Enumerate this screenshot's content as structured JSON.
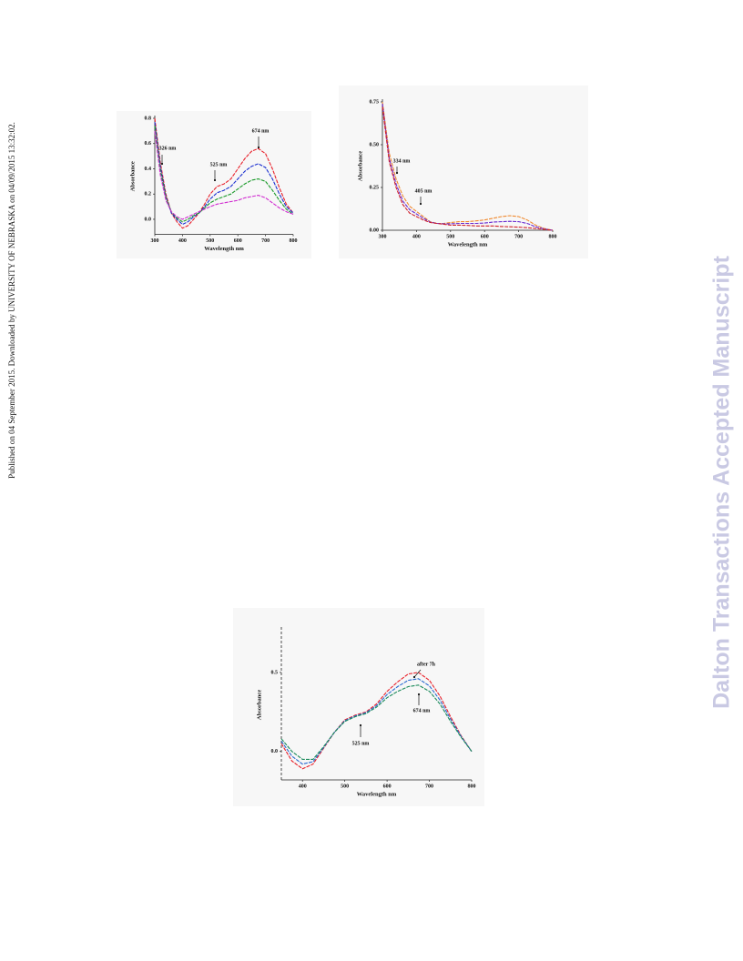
{
  "side_note": "Published on 04 September 2015. Downloaded by UNIVERSITY OF NEBRASKA on 04/09/2015 13:32:02.",
  "watermark": "Dalton Transactions Accepted Manuscript",
  "chart_data": [
    {
      "type": "line",
      "xlabel": "Wavelength nm",
      "ylabel": "Absorbance",
      "annotations": [
        "326 nm",
        "525 nm",
        "674 nm"
      ],
      "x": [
        300,
        320,
        340,
        360,
        380,
        400,
        420,
        440,
        460,
        480,
        500,
        525,
        550,
        575,
        600,
        625,
        650,
        674,
        700,
        725,
        750,
        775,
        800
      ],
      "xlim": [
        300,
        800
      ],
      "xticks": [
        300,
        400,
        500,
        600,
        700,
        800
      ],
      "ylim": [
        -0.12,
        0.8
      ],
      "yticks": [
        {
          "value": 0,
          "label": "0.0"
        },
        {
          "value": 0.2,
          "label": "0.2"
        },
        {
          "value": 0.4,
          "label": "0.4"
        },
        {
          "value": 0.6,
          "label": "0.6"
        },
        {
          "value": 0.8,
          "label": "0.8"
        }
      ],
      "series": [
        {
          "color": "#e8202a",
          "values": [
            0.8,
            0.45,
            0.2,
            0.05,
            -0.02,
            -0.07,
            -0.05,
            0.0,
            0.05,
            0.12,
            0.2,
            0.26,
            0.28,
            0.32,
            0.4,
            0.48,
            0.54,
            0.56,
            0.52,
            0.4,
            0.25,
            0.12,
            0.05
          ]
        },
        {
          "color": "#1a2fd0",
          "values": [
            0.77,
            0.42,
            0.18,
            0.05,
            0.0,
            -0.04,
            -0.02,
            0.02,
            0.05,
            0.1,
            0.16,
            0.21,
            0.23,
            0.26,
            0.32,
            0.38,
            0.42,
            0.44,
            0.41,
            0.32,
            0.2,
            0.1,
            0.05
          ]
        },
        {
          "color": "#1a9a2a",
          "values": [
            0.74,
            0.39,
            0.17,
            0.06,
            0.01,
            -0.02,
            0.0,
            0.03,
            0.05,
            0.09,
            0.13,
            0.16,
            0.18,
            0.2,
            0.24,
            0.28,
            0.31,
            0.32,
            0.3,
            0.23,
            0.15,
            0.08,
            0.04
          ]
        },
        {
          "color": "#d02ad0",
          "values": [
            0.7,
            0.35,
            0.15,
            0.06,
            0.02,
            0.0,
            0.02,
            0.04,
            0.06,
            0.08,
            0.1,
            0.12,
            0.13,
            0.14,
            0.15,
            0.17,
            0.18,
            0.19,
            0.17,
            0.13,
            0.09,
            0.06,
            0.04
          ]
        }
      ]
    },
    {
      "type": "line",
      "xlabel": "Wavelength nm",
      "ylabel": "Absorbance",
      "annotations": [
        "334 nm",
        "405 nm"
      ],
      "x": [
        300,
        320,
        340,
        360,
        380,
        400,
        420,
        440,
        460,
        480,
        500,
        525,
        550,
        575,
        600,
        625,
        650,
        674,
        700,
        725,
        750,
        775,
        800
      ],
      "xlim": [
        300,
        800
      ],
      "xticks": [
        300,
        400,
        500,
        600,
        700,
        800
      ],
      "ylim": [
        0,
        0.75
      ],
      "yticks": [
        {
          "value": 0,
          "label": "0.00"
        },
        {
          "value": 0.25,
          "label": "0.25"
        },
        {
          "value": 0.5,
          "label": "0.50"
        },
        {
          "value": 0.75,
          "label": "0.75"
        }
      ],
      "series": [
        {
          "color": "#f08a30",
          "values": [
            0.75,
            0.45,
            0.3,
            0.2,
            0.14,
            0.11,
            0.08,
            0.05,
            0.04,
            0.04,
            0.045,
            0.05,
            0.05,
            0.055,
            0.06,
            0.07,
            0.08,
            0.085,
            0.08,
            0.06,
            0.03,
            0.01,
            0.0
          ]
        },
        {
          "color": "#6a2ad0",
          "values": [
            0.74,
            0.42,
            0.27,
            0.17,
            0.12,
            0.095,
            0.07,
            0.048,
            0.04,
            0.038,
            0.038,
            0.04,
            0.04,
            0.04,
            0.042,
            0.048,
            0.05,
            0.052,
            0.05,
            0.04,
            0.02,
            0.008,
            0.0
          ]
        },
        {
          "color": "#d0202a",
          "values": [
            0.72,
            0.4,
            0.25,
            0.15,
            0.1,
            0.08,
            0.06,
            0.045,
            0.04,
            0.035,
            0.03,
            0.03,
            0.028,
            0.025,
            0.025,
            0.025,
            0.022,
            0.02,
            0.018,
            0.015,
            0.01,
            0.005,
            0.0
          ]
        }
      ]
    },
    {
      "type": "line",
      "xlabel": "Wavelength nm",
      "ylabel": "Absorbance",
      "annotations": [
        "after 7h",
        "674 nm",
        "525 nm"
      ],
      "x": [
        350,
        375,
        400,
        425,
        450,
        475,
        500,
        525,
        550,
        575,
        600,
        625,
        650,
        674,
        700,
        725,
        750,
        775,
        800
      ],
      "xlim": [
        350,
        800
      ],
      "xticks": [
        400,
        500,
        600,
        700,
        800
      ],
      "ylim": [
        -0.18,
        0.77
      ],
      "yticks": [
        {
          "value": 0,
          "label": "0.0"
        },
        {
          "value": 0.5,
          "label": "0.5"
        }
      ],
      "series": [
        {
          "color": "#e8202a",
          "values": [
            0.05,
            -0.06,
            -0.11,
            -0.08,
            0.02,
            0.12,
            0.2,
            0.23,
            0.25,
            0.3,
            0.38,
            0.44,
            0.49,
            0.5,
            0.45,
            0.35,
            0.22,
            0.1,
            0.0
          ]
        },
        {
          "color": "#2a6ad0",
          "values": [
            0.065,
            -0.03,
            -0.08,
            -0.065,
            0.025,
            0.12,
            0.195,
            0.225,
            0.245,
            0.29,
            0.36,
            0.41,
            0.45,
            0.46,
            0.415,
            0.325,
            0.205,
            0.095,
            0.0
          ]
        },
        {
          "color": "#1a8a5a",
          "values": [
            0.08,
            0.0,
            -0.05,
            -0.05,
            0.03,
            0.12,
            0.19,
            0.22,
            0.24,
            0.28,
            0.34,
            0.38,
            0.41,
            0.42,
            0.38,
            0.3,
            0.19,
            0.09,
            0.0
          ]
        }
      ]
    }
  ]
}
